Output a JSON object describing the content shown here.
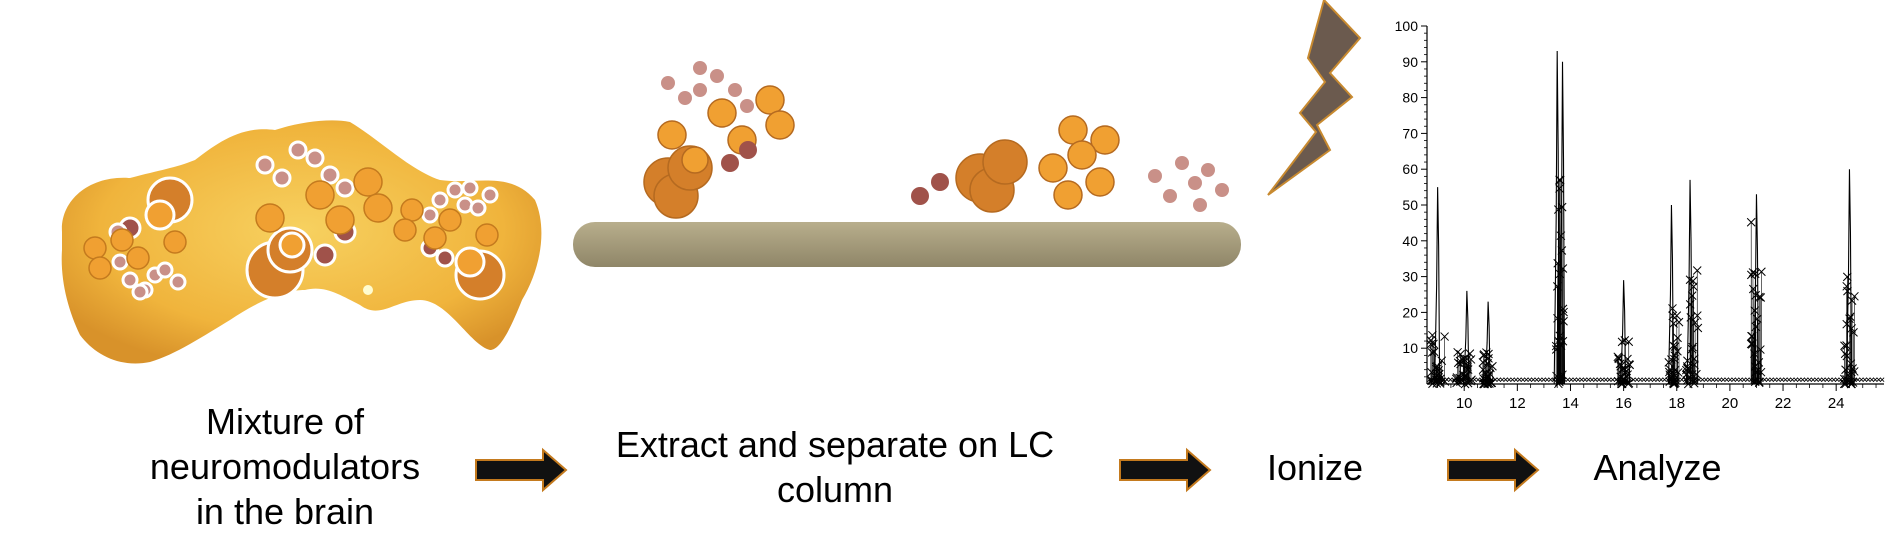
{
  "steps": {
    "mixture": "Mixture of\nneuromodulators\nin the brain",
    "extract": "Extract and separate on LC\ncolumn",
    "ionize": "Ionize",
    "analyze": "Analyze"
  },
  "icons": {
    "brain": "brain-slice-icon",
    "column": "lc-column-icon",
    "ionize": "lightning-bolt-icon",
    "arrow": "right-arrow-icon"
  },
  "colors": {
    "brain": "#f0b43c",
    "molecule_large": "#d47f2a",
    "molecule_orange": "#f0a032",
    "molecule_dark": "#a0524a",
    "molecule_pink": "#c99088",
    "column": "#9e9577",
    "bolt": "#6b5a4e",
    "bolt_outline": "#c88a30",
    "arrow": "#111111",
    "arrow_outline": "#c47a1e"
  },
  "chart_data": {
    "type": "line",
    "title": "",
    "xlabel": "",
    "ylabel": "",
    "xticks": [
      10,
      12,
      14,
      16,
      18,
      20,
      22,
      24
    ],
    "yticks": [
      10,
      20,
      30,
      40,
      50,
      60,
      70,
      80,
      90,
      100
    ],
    "tick_labels_x": [
      "10",
      "12",
      "14",
      "16",
      "18",
      "20",
      "22",
      "24"
    ],
    "tick_labels_y": [
      "10",
      "20",
      "30",
      "40",
      "50",
      "60",
      "70",
      "80",
      "90",
      "100"
    ],
    "xlim": [
      8.6,
      25.8
    ],
    "ylim": [
      0,
      100
    ],
    "peaks": [
      {
        "x": 9.0,
        "y": 55
      },
      {
        "x": 10.1,
        "y": 26
      },
      {
        "x": 10.9,
        "y": 23
      },
      {
        "x": 13.5,
        "y": 93
      },
      {
        "x": 13.7,
        "y": 90
      },
      {
        "x": 16.0,
        "y": 29
      },
      {
        "x": 17.8,
        "y": 50
      },
      {
        "x": 18.5,
        "y": 57
      },
      {
        "x": 21.0,
        "y": 53
      },
      {
        "x": 24.5,
        "y": 60
      }
    ],
    "clusters": [
      {
        "x": 9.0,
        "spread": 0.6,
        "max": 14
      },
      {
        "x": 10.0,
        "spread": 0.6,
        "max": 9
      },
      {
        "x": 10.9,
        "spread": 0.4,
        "max": 10
      },
      {
        "x": 13.6,
        "spread": 0.3,
        "max": 58
      },
      {
        "x": 16.0,
        "spread": 0.5,
        "max": 13
      },
      {
        "x": 17.9,
        "spread": 0.4,
        "max": 22
      },
      {
        "x": 18.6,
        "spread": 0.5,
        "max": 32
      },
      {
        "x": 21.0,
        "spread": 0.4,
        "max": 47
      },
      {
        "x": 24.5,
        "spread": 0.4,
        "max": 30
      }
    ]
  }
}
